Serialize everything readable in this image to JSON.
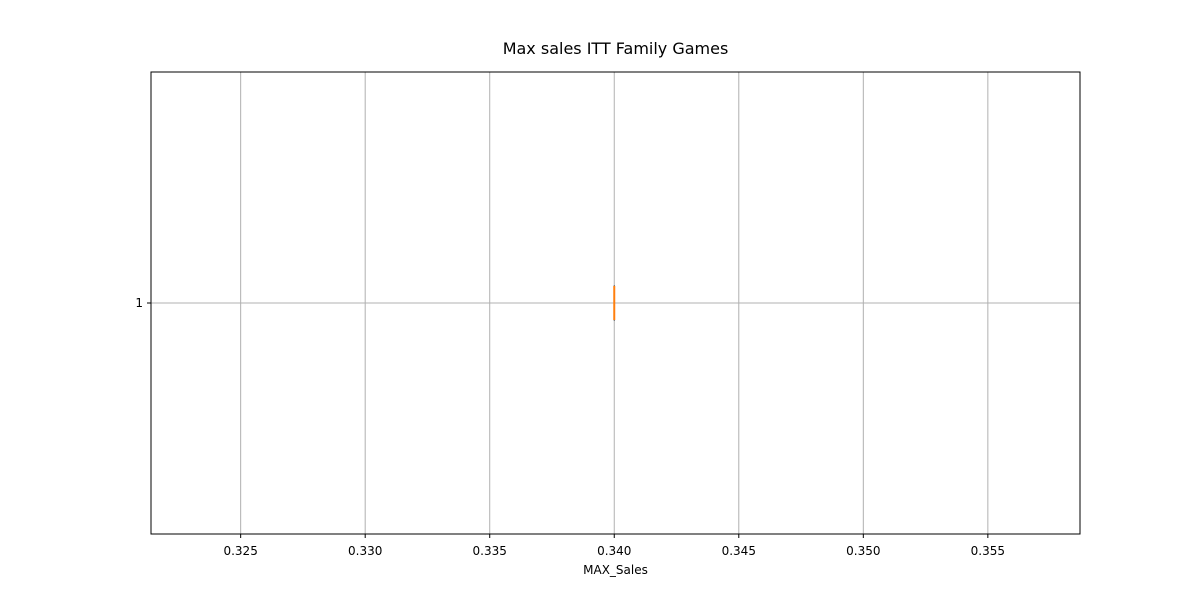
{
  "chart_data": {
    "type": "box",
    "title": "Max sales ITT Family Games",
    "xlabel": "MAX_Sales",
    "ylabel": "",
    "orientation": "horizontal",
    "xlim": [
      0.3214,
      0.3587
    ],
    "x_ticks": [
      0.325,
      0.33,
      0.335,
      0.34,
      0.345,
      0.35,
      0.355
    ],
    "x_tick_labels": [
      "0.325",
      "0.330",
      "0.335",
      "0.340",
      "0.345",
      "0.350",
      "0.355"
    ],
    "y_ticks": [
      1
    ],
    "y_tick_labels": [
      "1"
    ],
    "grid": true,
    "series": [
      {
        "position": 1,
        "min": 0.34,
        "q1": 0.34,
        "median": 0.34,
        "q3": 0.34,
        "max": 0.34
      }
    ],
    "colors": {
      "box": "#000000",
      "median": "#ff7f0e",
      "grid": "#b0b0b0"
    }
  }
}
